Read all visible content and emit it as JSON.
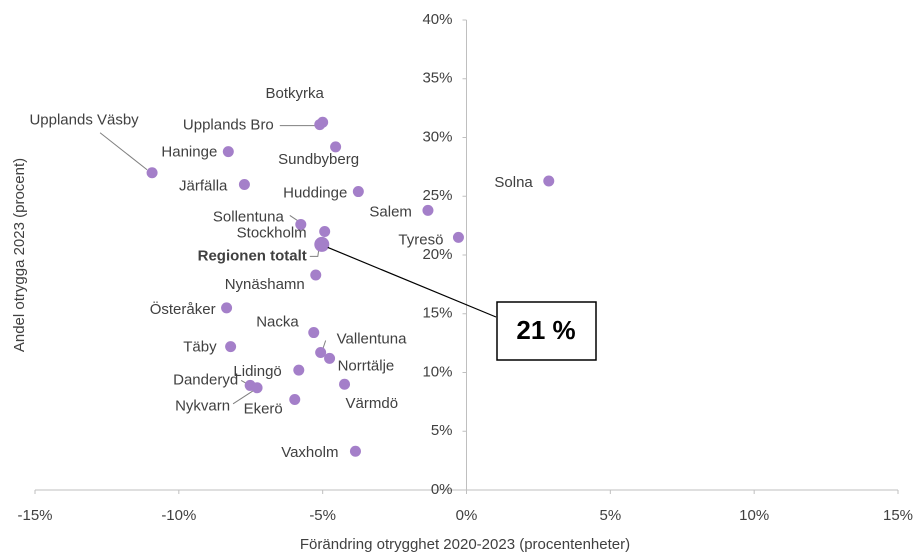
{
  "chart_data": {
    "type": "scatter",
    "x_label": "Förändring otrygghet 2020-2023 (procentenheter)",
    "y_label": "Andel otrygga 2023 (procent)",
    "color": "#a47fc9",
    "labels": [
      "Botkyrka",
      "Upplands Bro",
      "Sundbyberg",
      "Haninge",
      "Upplands Väsby",
      "Järfälla",
      "Huddinge",
      "Solna",
      "Salem",
      "Sollentuna",
      "Stockholm",
      "Tyresö",
      "Regionen totalt",
      "Nynäshamn",
      "Österåker",
      "Nacka",
      "Vallentuna",
      "Täby",
      "Norrtälje",
      "Lidingö",
      "Värmdö",
      "Danderyd",
      "Nykvarn",
      "Ekerö",
      "Vaxholm"
    ],
    "x": [
      -5.0,
      -5.1,
      -4.55,
      -8.28,
      -10.93,
      -7.72,
      -3.76,
      2.86,
      -1.34,
      -5.76,
      -4.93,
      -0.28,
      -5.03,
      -5.24,
      -8.34,
      -5.31,
      -5.07,
      -8.2,
      -4.76,
      -5.83,
      -4.24,
      -7.52,
      -7.28,
      -5.97,
      -3.86
    ],
    "values": [
      31.3,
      31.1,
      29.2,
      28.8,
      27.0,
      26.0,
      25.4,
      26.3,
      23.8,
      22.6,
      22.0,
      21.5,
      20.9,
      18.3,
      15.5,
      13.4,
      11.7,
      12.2,
      11.2,
      10.2,
      9.0,
      8.9,
      8.7,
      7.7,
      3.3
    ],
    "annotation": "21 %",
    "xlim": [
      -15,
      15
    ],
    "ylim": [
      0,
      40
    ],
    "xticks": [
      {
        "value": -15,
        "label": "-15%"
      },
      {
        "value": -10,
        "label": "-10%"
      },
      {
        "value": -5,
        "label": "-5%"
      },
      {
        "value": 0,
        "label": "0%"
      },
      {
        "value": 5,
        "label": "5%"
      },
      {
        "value": 10,
        "label": "10%"
      },
      {
        "value": 15,
        "label": "15%"
      }
    ],
    "yticks": [
      {
        "value": 0,
        "label": "0%"
      },
      {
        "value": 5,
        "label": "5%"
      },
      {
        "value": 10,
        "label": "10%"
      },
      {
        "value": 15,
        "label": "15%"
      },
      {
        "value": 20,
        "label": "20%"
      },
      {
        "value": 25,
        "label": "25%"
      },
      {
        "value": 30,
        "label": "30%"
      },
      {
        "value": 35,
        "label": "35%"
      },
      {
        "value": 40,
        "label": "40%"
      }
    ]
  }
}
